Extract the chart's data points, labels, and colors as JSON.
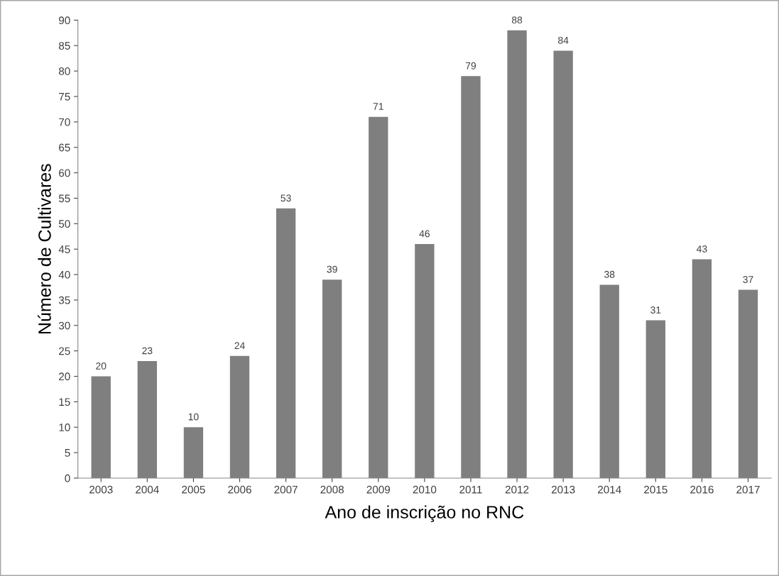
{
  "chart_data": {
    "type": "bar",
    "xlabel": "Ano de inscrição no RNC",
    "ylabel": "Número de Cultivares",
    "categories": [
      "2003",
      "2004",
      "2005",
      "2006",
      "2007",
      "2008",
      "2009",
      "2010",
      "2011",
      "2012",
      "2013",
      "2014",
      "2015",
      "2016",
      "2017"
    ],
    "values": [
      20,
      23,
      10,
      24,
      53,
      39,
      71,
      46,
      79,
      88,
      84,
      38,
      31,
      43,
      37
    ],
    "color": "#7f7f7f",
    "ylim": [
      0,
      90
    ],
    "yticks": [
      0,
      5,
      10,
      15,
      20,
      25,
      30,
      35,
      40,
      45,
      50,
      55,
      60,
      65,
      70,
      75,
      80,
      85,
      90
    ],
    "data_labels": true,
    "grid": false,
    "legend": false
  }
}
